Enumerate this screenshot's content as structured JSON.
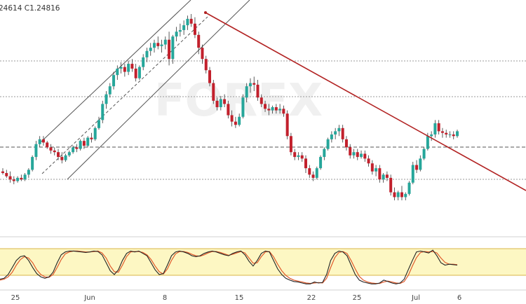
{
  "header": {
    "price_text": "24614  C1.24816"
  },
  "colors": {
    "up": "#26a69a",
    "down": "#c2202c",
    "trendline": "#b22222",
    "channel": "#555555",
    "level": "#555555",
    "dotted": "#888888",
    "stoch_k": "#222222",
    "stoch_d": "#e05a2b",
    "stoch_band": "#fdf7c3",
    "stoch_band_border": "#d9b54a",
    "watermark": "#e3e3e3"
  },
  "watermark_text": "FOREX",
  "chart_data": [
    {
      "type": "candlestick",
      "candles": [
        {
          "o": 16,
          "h": 20,
          "l": 12,
          "c": 14
        },
        {
          "o": 14,
          "h": 18,
          "l": 8,
          "c": 10
        },
        {
          "o": 10,
          "h": 16,
          "l": 2,
          "c": 6
        },
        {
          "o": 6,
          "h": 10,
          "l": 0,
          "c": 4
        },
        {
          "o": 4,
          "h": 10,
          "l": 2,
          "c": 8
        },
        {
          "o": 8,
          "h": 12,
          "l": 4,
          "c": 6
        },
        {
          "o": 6,
          "h": 14,
          "l": 4,
          "c": 12
        },
        {
          "o": 12,
          "h": 20,
          "l": 8,
          "c": 18
        },
        {
          "o": 18,
          "h": 36,
          "l": 16,
          "c": 34
        },
        {
          "o": 34,
          "h": 54,
          "l": 30,
          "c": 50
        },
        {
          "o": 50,
          "h": 60,
          "l": 46,
          "c": 56
        },
        {
          "o": 56,
          "h": 60,
          "l": 48,
          "c": 52
        },
        {
          "o": 52,
          "h": 54,
          "l": 44,
          "c": 46
        },
        {
          "o": 46,
          "h": 50,
          "l": 38,
          "c": 42
        },
        {
          "o": 42,
          "h": 46,
          "l": 36,
          "c": 40
        },
        {
          "o": 40,
          "h": 44,
          "l": 30,
          "c": 34
        },
        {
          "o": 34,
          "h": 40,
          "l": 26,
          "c": 30
        },
        {
          "o": 30,
          "h": 38,
          "l": 28,
          "c": 36
        },
        {
          "o": 36,
          "h": 42,
          "l": 34,
          "c": 40
        },
        {
          "o": 40,
          "h": 48,
          "l": 38,
          "c": 46
        },
        {
          "o": 46,
          "h": 50,
          "l": 40,
          "c": 44
        },
        {
          "o": 44,
          "h": 56,
          "l": 42,
          "c": 54
        },
        {
          "o": 54,
          "h": 58,
          "l": 44,
          "c": 48
        },
        {
          "o": 48,
          "h": 60,
          "l": 46,
          "c": 58
        },
        {
          "o": 58,
          "h": 64,
          "l": 52,
          "c": 56
        },
        {
          "o": 56,
          "h": 72,
          "l": 54,
          "c": 70
        },
        {
          "o": 70,
          "h": 84,
          "l": 68,
          "c": 80
        },
        {
          "o": 80,
          "h": 104,
          "l": 76,
          "c": 100
        },
        {
          "o": 100,
          "h": 116,
          "l": 94,
          "c": 112
        },
        {
          "o": 112,
          "h": 126,
          "l": 108,
          "c": 122
        },
        {
          "o": 122,
          "h": 140,
          "l": 118,
          "c": 136
        },
        {
          "o": 136,
          "h": 148,
          "l": 130,
          "c": 144
        },
        {
          "o": 144,
          "h": 152,
          "l": 138,
          "c": 146
        },
        {
          "o": 146,
          "h": 150,
          "l": 134,
          "c": 140
        },
        {
          "o": 140,
          "h": 154,
          "l": 136,
          "c": 150
        },
        {
          "o": 150,
          "h": 156,
          "l": 140,
          "c": 144
        },
        {
          "o": 144,
          "h": 150,
          "l": 128,
          "c": 132
        },
        {
          "o": 132,
          "h": 148,
          "l": 130,
          "c": 146
        },
        {
          "o": 146,
          "h": 162,
          "l": 142,
          "c": 158
        },
        {
          "o": 158,
          "h": 170,
          "l": 152,
          "c": 166
        },
        {
          "o": 166,
          "h": 176,
          "l": 160,
          "c": 170
        },
        {
          "o": 170,
          "h": 180,
          "l": 164,
          "c": 176
        },
        {
          "o": 176,
          "h": 184,
          "l": 168,
          "c": 172
        },
        {
          "o": 172,
          "h": 180,
          "l": 164,
          "c": 174
        },
        {
          "o": 174,
          "h": 184,
          "l": 168,
          "c": 180
        },
        {
          "o": 180,
          "h": 190,
          "l": 148,
          "c": 156
        },
        {
          "o": 156,
          "h": 186,
          "l": 150,
          "c": 184
        },
        {
          "o": 184,
          "h": 196,
          "l": 178,
          "c": 190
        },
        {
          "o": 190,
          "h": 200,
          "l": 184,
          "c": 192
        },
        {
          "o": 192,
          "h": 204,
          "l": 186,
          "c": 198
        },
        {
          "o": 198,
          "h": 210,
          "l": 192,
          "c": 206
        },
        {
          "o": 206,
          "h": 212,
          "l": 196,
          "c": 200
        },
        {
          "o": 200,
          "h": 208,
          "l": 182,
          "c": 186
        },
        {
          "o": 186,
          "h": 190,
          "l": 162,
          "c": 170
        },
        {
          "o": 170,
          "h": 174,
          "l": 150,
          "c": 156
        },
        {
          "o": 156,
          "h": 160,
          "l": 138,
          "c": 142
        },
        {
          "o": 142,
          "h": 146,
          "l": 122,
          "c": 126
        },
        {
          "o": 126,
          "h": 130,
          "l": 100,
          "c": 104
        },
        {
          "o": 104,
          "h": 108,
          "l": 92,
          "c": 96
        },
        {
          "o": 96,
          "h": 110,
          "l": 92,
          "c": 106
        },
        {
          "o": 106,
          "h": 112,
          "l": 96,
          "c": 100
        },
        {
          "o": 100,
          "h": 104,
          "l": 82,
          "c": 86
        },
        {
          "o": 86,
          "h": 92,
          "l": 72,
          "c": 78
        },
        {
          "o": 78,
          "h": 84,
          "l": 70,
          "c": 74
        },
        {
          "o": 74,
          "h": 88,
          "l": 72,
          "c": 84
        },
        {
          "o": 84,
          "h": 112,
          "l": 82,
          "c": 108
        },
        {
          "o": 108,
          "h": 126,
          "l": 102,
          "c": 122
        },
        {
          "o": 122,
          "h": 132,
          "l": 114,
          "c": 126
        },
        {
          "o": 126,
          "h": 134,
          "l": 116,
          "c": 124
        },
        {
          "o": 124,
          "h": 130,
          "l": 104,
          "c": 108
        },
        {
          "o": 108,
          "h": 112,
          "l": 96,
          "c": 100
        },
        {
          "o": 100,
          "h": 104,
          "l": 90,
          "c": 94
        },
        {
          "o": 94,
          "h": 100,
          "l": 86,
          "c": 92
        },
        {
          "o": 92,
          "h": 98,
          "l": 88,
          "c": 96
        },
        {
          "o": 96,
          "h": 100,
          "l": 88,
          "c": 92
        },
        {
          "o": 92,
          "h": 100,
          "l": 88,
          "c": 94
        },
        {
          "o": 94,
          "h": 98,
          "l": 84,
          "c": 88
        },
        {
          "o": 88,
          "h": 92,
          "l": 56,
          "c": 60
        },
        {
          "o": 60,
          "h": 64,
          "l": 36,
          "c": 40
        },
        {
          "o": 40,
          "h": 44,
          "l": 30,
          "c": 34
        },
        {
          "o": 34,
          "h": 40,
          "l": 30,
          "c": 36
        },
        {
          "o": 36,
          "h": 40,
          "l": 28,
          "c": 32
        },
        {
          "o": 32,
          "h": 36,
          "l": 14,
          "c": 20
        },
        {
          "o": 20,
          "h": 24,
          "l": 8,
          "c": 12
        },
        {
          "o": 12,
          "h": 16,
          "l": 4,
          "c": 8
        },
        {
          "o": 8,
          "h": 22,
          "l": 6,
          "c": 20
        },
        {
          "o": 20,
          "h": 36,
          "l": 18,
          "c": 34
        },
        {
          "o": 34,
          "h": 46,
          "l": 30,
          "c": 44
        },
        {
          "o": 44,
          "h": 58,
          "l": 42,
          "c": 56
        },
        {
          "o": 56,
          "h": 66,
          "l": 52,
          "c": 62
        },
        {
          "o": 62,
          "h": 70,
          "l": 56,
          "c": 66
        },
        {
          "o": 66,
          "h": 74,
          "l": 60,
          "c": 70
        },
        {
          "o": 70,
          "h": 74,
          "l": 52,
          "c": 56
        },
        {
          "o": 56,
          "h": 60,
          "l": 42,
          "c": 46
        },
        {
          "o": 46,
          "h": 50,
          "l": 32,
          "c": 36
        },
        {
          "o": 36,
          "h": 44,
          "l": 32,
          "c": 40
        },
        {
          "o": 40,
          "h": 44,
          "l": 30,
          "c": 34
        },
        {
          "o": 34,
          "h": 42,
          "l": 32,
          "c": 38
        },
        {
          "o": 38,
          "h": 42,
          "l": 28,
          "c": 32
        },
        {
          "o": 32,
          "h": 36,
          "l": 22,
          "c": 26
        },
        {
          "o": 26,
          "h": 30,
          "l": 12,
          "c": 16
        },
        {
          "o": 16,
          "h": 24,
          "l": 10,
          "c": 20
        },
        {
          "o": 20,
          "h": 24,
          "l": 2,
          "c": 6
        },
        {
          "o": 6,
          "h": 14,
          "l": 2,
          "c": 12
        },
        {
          "o": 12,
          "h": 16,
          "l": 4,
          "c": 8
        },
        {
          "o": 8,
          "h": 12,
          "l": -14,
          "c": -10
        },
        {
          "o": -10,
          "h": -4,
          "l": -20,
          "c": -16
        },
        {
          "o": -16,
          "h": -8,
          "l": -20,
          "c": -10
        },
        {
          "o": -10,
          "h": -2,
          "l": -20,
          "c": -16
        },
        {
          "o": -16,
          "h": -10,
          "l": -20,
          "c": -12
        },
        {
          "o": -12,
          "h": 4,
          "l": -14,
          "c": 2
        },
        {
          "o": 2,
          "h": 28,
          "l": 0,
          "c": 24
        },
        {
          "o": 24,
          "h": 30,
          "l": 14,
          "c": 18
        },
        {
          "o": 18,
          "h": 36,
          "l": 16,
          "c": 32
        },
        {
          "o": 32,
          "h": 46,
          "l": 30,
          "c": 44
        },
        {
          "o": 44,
          "h": 64,
          "l": 42,
          "c": 60
        },
        {
          "o": 60,
          "h": 66,
          "l": 54,
          "c": 62
        },
        {
          "o": 62,
          "h": 80,
          "l": 58,
          "c": 76
        },
        {
          "o": 76,
          "h": 80,
          "l": 62,
          "c": 66
        },
        {
          "o": 66,
          "h": 70,
          "l": 58,
          "c": 64
        },
        {
          "o": 64,
          "h": 68,
          "l": 58,
          "c": 62
        },
        {
          "o": 62,
          "h": 66,
          "l": 58,
          "c": 62
        },
        {
          "o": 62,
          "h": 66,
          "l": 56,
          "c": 60
        },
        {
          "o": 60,
          "h": 68,
          "l": 58,
          "c": 66
        }
      ],
      "x_ticks": [
        "25",
        "Jun",
        "8",
        "15",
        "22",
        "25",
        "Jul",
        "6"
      ]
    },
    {
      "type": "line",
      "stoch_k": [
        20,
        22,
        30,
        45,
        60,
        68,
        70,
        60,
        45,
        32,
        25,
        22,
        25,
        35,
        55,
        72,
        78,
        80,
        80,
        79,
        78,
        77,
        78,
        80,
        79,
        72,
        55,
        38,
        30,
        40,
        60,
        75,
        80,
        78,
        80,
        75,
        70,
        55,
        40,
        30,
        32,
        50,
        70,
        78,
        80,
        78,
        75,
        70,
        68,
        70,
        75,
        78,
        80,
        78,
        75,
        72,
        70,
        75,
        78,
        80,
        72,
        58,
        48,
        60,
        75,
        80,
        78,
        60,
        42,
        30,
        22,
        18,
        15,
        14,
        12,
        10,
        10,
        14,
        12,
        13,
        30,
        60,
        75,
        80,
        78,
        70,
        50,
        30,
        18,
        14,
        12,
        10,
        10,
        12,
        18,
        15,
        12,
        10,
        12,
        20,
        40,
        60,
        78,
        80,
        78,
        76,
        82,
        70,
        55,
        50,
        52,
        51,
        50
      ],
      "stoch_d": [
        18,
        20,
        25,
        35,
        50,
        62,
        68,
        65,
        55,
        40,
        30,
        25,
        24,
        30,
        45,
        62,
        74,
        78,
        80,
        80,
        79,
        78,
        78,
        79,
        80,
        76,
        65,
        48,
        36,
        35,
        50,
        68,
        78,
        79,
        79,
        77,
        72,
        62,
        48,
        36,
        31,
        42,
        60,
        74,
        79,
        79,
        77,
        73,
        70,
        69,
        72,
        76,
        79,
        79,
        77,
        74,
        71,
        73,
        76,
        79,
        76,
        65,
        54,
        55,
        68,
        78,
        79,
        68,
        52,
        38,
        28,
        22,
        18,
        16,
        14,
        12,
        11,
        12,
        13,
        12,
        22,
        45,
        66,
        77,
        79,
        75,
        60,
        42,
        26,
        18,
        14,
        12,
        11,
        11,
        14,
        16,
        14,
        12,
        11,
        15,
        28,
        48,
        66,
        77,
        79,
        78,
        79,
        76,
        65,
        56,
        52,
        52,
        51
      ]
    }
  ]
}
